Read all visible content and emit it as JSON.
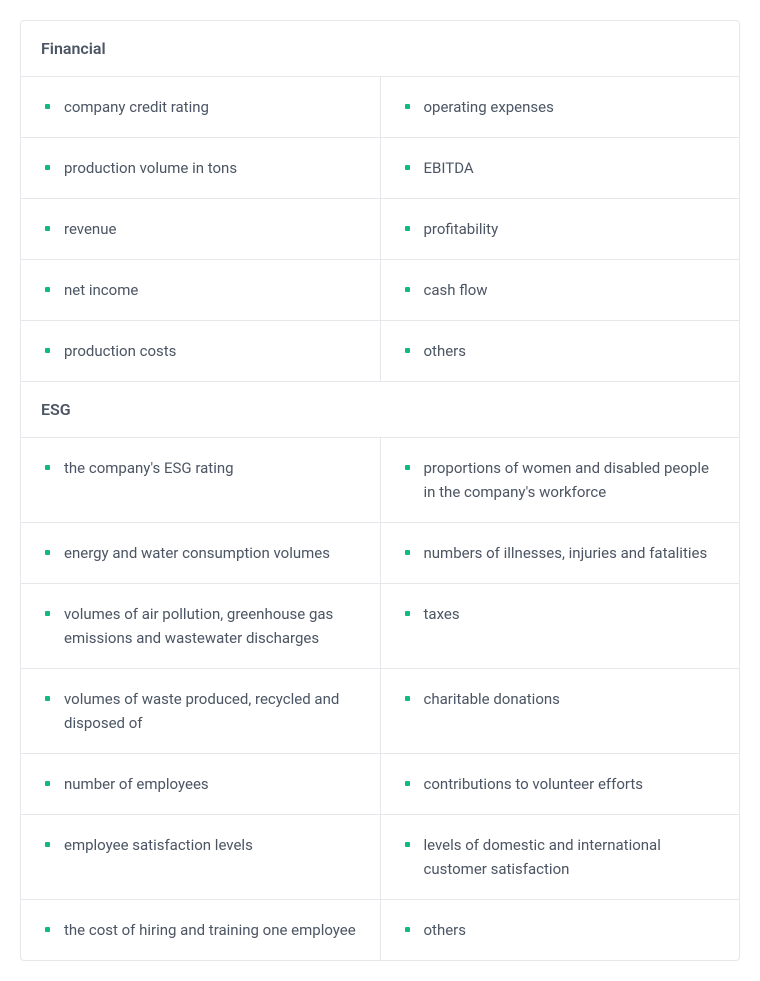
{
  "bullet_color": "#10b981",
  "text_color": "#4b5563",
  "border_color": "#e5e7eb",
  "background_color": "#ffffff",
  "sections": [
    {
      "title": "Financial",
      "rows": [
        {
          "left": "company credit rating",
          "right": "operating expenses"
        },
        {
          "left": "production volume in tons",
          "right": "EBITDA"
        },
        {
          "left": "revenue",
          "right": "profitability"
        },
        {
          "left": "net income",
          "right": "cash flow"
        },
        {
          "left": "production costs",
          "right": "others"
        }
      ]
    },
    {
      "title": "ESG",
      "rows": [
        {
          "left": "the company's ESG rating",
          "right": "proportions of women and disabled people in the company's workforce"
        },
        {
          "left": "energy and water consumption volumes",
          "right": "numbers of illnesses, injuries and fatalities"
        },
        {
          "left": "volumes of air pollution, greenhouse gas emissions and wastewater discharges",
          "right": "taxes"
        },
        {
          "left": "volumes of waste produced, recycled and disposed of",
          "right": "charitable donations"
        },
        {
          "left": "number of employees",
          "right": "contributions to volunteer efforts"
        },
        {
          "left": "employee satisfaction levels",
          "right": "levels of domestic and international customer satisfaction"
        },
        {
          "left": "the cost of hiring and training one employee",
          "right": "others"
        }
      ]
    }
  ]
}
